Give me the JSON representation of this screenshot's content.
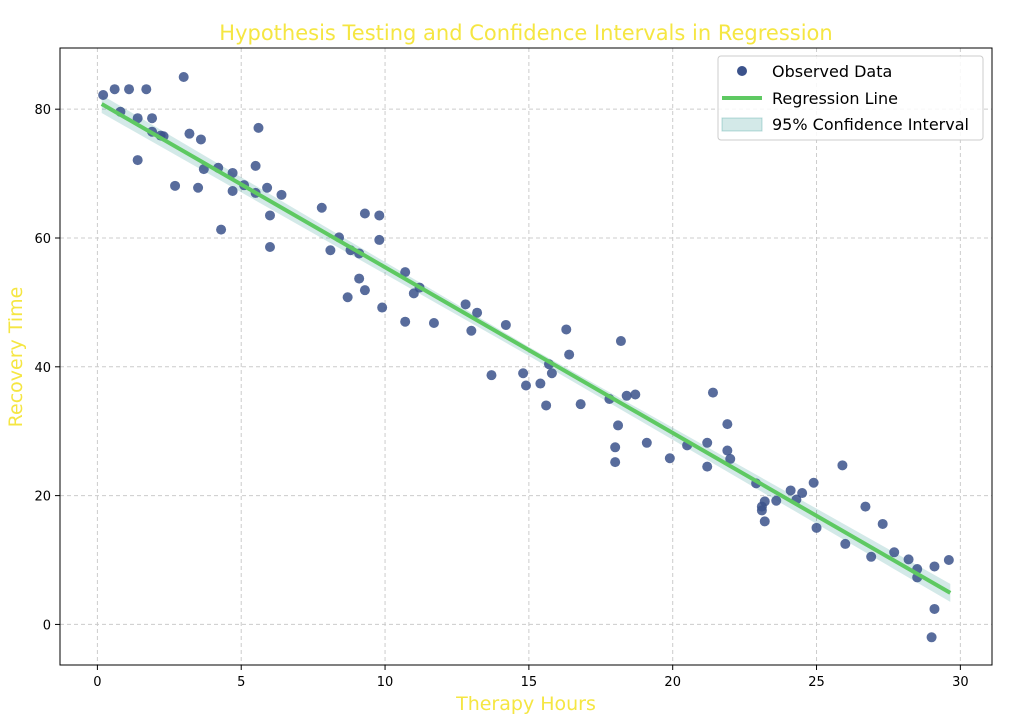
{
  "chart_data": {
    "type": "scatter",
    "title": "Hypothesis Testing and Confidence Intervals in Regression",
    "xlabel": "Therapy Hours",
    "ylabel": "Recovery Time",
    "xlim": [
      -1.3,
      31.1
    ],
    "ylim": [
      -6.3,
      89.5
    ],
    "xticks": [
      0,
      5,
      10,
      15,
      20,
      25,
      30
    ],
    "yticks": [
      0,
      20,
      40,
      60,
      80
    ],
    "grid": true,
    "legend_position": "top-right",
    "colors": {
      "title": "#f5e642",
      "axis_label": "#f5e642",
      "points": "#3b528b",
      "line": "#5ec962",
      "ci": "#21918c"
    },
    "series": [
      {
        "name": "Observed Data",
        "kind": "scatter",
        "points": [
          [
            0.2,
            82.2
          ],
          [
            0.6,
            83.1
          ],
          [
            0.8,
            79.6
          ],
          [
            1.1,
            83.1
          ],
          [
            1.4,
            78.6
          ],
          [
            1.4,
            72.1
          ],
          [
            1.7,
            83.1
          ],
          [
            1.9,
            78.6
          ],
          [
            1.9,
            76.5
          ],
          [
            2.2,
            75.9
          ],
          [
            2.3,
            75.8
          ],
          [
            2.7,
            68.1
          ],
          [
            3.0,
            85.0
          ],
          [
            3.2,
            76.2
          ],
          [
            3.5,
            67.8
          ],
          [
            3.6,
            75.3
          ],
          [
            3.7,
            70.7
          ],
          [
            4.2,
            70.9
          ],
          [
            4.3,
            61.3
          ],
          [
            4.7,
            70.1
          ],
          [
            4.7,
            67.3
          ],
          [
            5.1,
            68.2
          ],
          [
            5.5,
            71.2
          ],
          [
            5.5,
            67.0
          ],
          [
            5.6,
            77.1
          ],
          [
            5.9,
            67.8
          ],
          [
            6.0,
            63.5
          ],
          [
            6.0,
            58.6
          ],
          [
            6.4,
            66.7
          ],
          [
            7.8,
            64.7
          ],
          [
            8.1,
            58.1
          ],
          [
            8.4,
            60.1
          ],
          [
            8.7,
            50.8
          ],
          [
            8.8,
            58.1
          ],
          [
            9.1,
            57.6
          ],
          [
            9.1,
            53.7
          ],
          [
            9.3,
            51.9
          ],
          [
            9.3,
            63.8
          ],
          [
            9.8,
            63.5
          ],
          [
            9.8,
            59.7
          ],
          [
            9.9,
            49.2
          ],
          [
            10.7,
            54.7
          ],
          [
            10.7,
            47.0
          ],
          [
            11.0,
            51.4
          ],
          [
            11.2,
            52.3
          ],
          [
            11.7,
            46.8
          ],
          [
            12.8,
            49.7
          ],
          [
            13.0,
            45.6
          ],
          [
            13.2,
            48.4
          ],
          [
            13.7,
            38.7
          ],
          [
            14.2,
            46.5
          ],
          [
            14.8,
            39.0
          ],
          [
            14.9,
            37.1
          ],
          [
            15.4,
            37.4
          ],
          [
            15.6,
            34.0
          ],
          [
            15.7,
            40.4
          ],
          [
            15.8,
            39.0
          ],
          [
            16.3,
            45.8
          ],
          [
            16.4,
            41.9
          ],
          [
            16.8,
            34.2
          ],
          [
            17.8,
            35.0
          ],
          [
            18.0,
            27.5
          ],
          [
            18.0,
            25.2
          ],
          [
            18.1,
            30.9
          ],
          [
            18.2,
            44.0
          ],
          [
            18.4,
            35.5
          ],
          [
            18.7,
            35.7
          ],
          [
            19.1,
            28.2
          ],
          [
            19.9,
            25.8
          ],
          [
            20.5,
            27.8
          ],
          [
            21.2,
            28.2
          ],
          [
            21.2,
            24.5
          ],
          [
            21.4,
            36.0
          ],
          [
            21.9,
            31.1
          ],
          [
            21.9,
            27.0
          ],
          [
            22.0,
            25.7
          ],
          [
            22.9,
            21.9
          ],
          [
            23.1,
            18.3
          ],
          [
            23.1,
            17.7
          ],
          [
            23.2,
            16.0
          ],
          [
            23.2,
            19.1
          ],
          [
            23.6,
            19.2
          ],
          [
            24.1,
            20.8
          ],
          [
            24.3,
            19.4
          ],
          [
            24.5,
            20.4
          ],
          [
            24.9,
            22.0
          ],
          [
            25.0,
            15.0
          ],
          [
            25.9,
            24.7
          ],
          [
            26.0,
            12.5
          ],
          [
            26.7,
            18.3
          ],
          [
            26.9,
            10.5
          ],
          [
            27.3,
            15.6
          ],
          [
            27.7,
            11.2
          ],
          [
            28.2,
            10.1
          ],
          [
            28.5,
            8.6
          ],
          [
            28.5,
            7.3
          ],
          [
            29.0,
            -2.0
          ],
          [
            29.1,
            9.0
          ],
          [
            29.1,
            2.4
          ],
          [
            29.6,
            10.0
          ]
        ]
      },
      {
        "name": "Regression Line",
        "kind": "line",
        "points": [
          [
            0.15,
            80.8
          ],
          [
            29.65,
            4.9
          ]
        ]
      },
      {
        "name": "95% Confidence Interval",
        "kind": "band",
        "lower": [
          [
            0.15,
            79.4
          ],
          [
            15.0,
            41.7
          ],
          [
            29.65,
            3.5
          ]
        ],
        "upper": [
          [
            0.15,
            82.2
          ],
          [
            15.0,
            43.1
          ],
          [
            29.65,
            6.3
          ]
        ]
      }
    ]
  }
}
